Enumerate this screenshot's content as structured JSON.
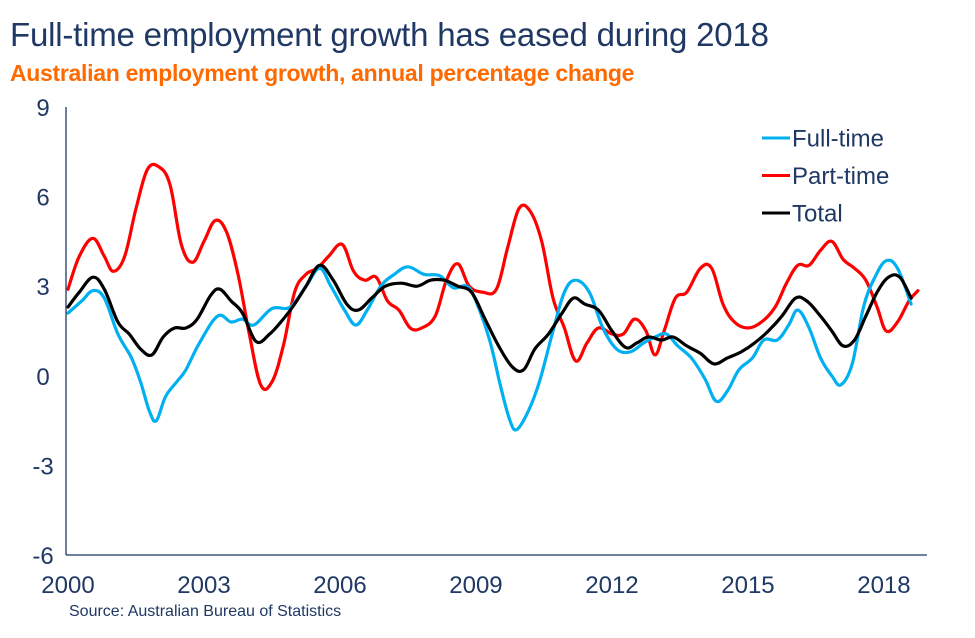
{
  "header": {
    "title": "Full-time employment growth has eased during 2018",
    "subtitle": "Australian employment growth, annual percentage change"
  },
  "footer": {
    "source": "Source: Australian Bureau of Statistics"
  },
  "chart_data": {
    "type": "line",
    "title": "Full-time employment growth has eased during 2018",
    "subtitle": "Australian employment growth, annual percentage change",
    "xlabel": "",
    "ylabel": "",
    "xlim": [
      2000,
      2019
    ],
    "ylim": [
      -6,
      9
    ],
    "x_ticks": [
      2000,
      2003,
      2006,
      2009,
      2012,
      2015,
      2018
    ],
    "x_tick_labels": [
      "2000",
      "2003",
      "2006",
      "2009",
      "2012",
      "2015",
      "2018"
    ],
    "y_ticks": [
      9,
      6,
      3,
      0,
      -3,
      -6
    ],
    "y_tick_labels": [
      "9",
      "6",
      "3",
      "0",
      "-3",
      "-6"
    ],
    "grid": false,
    "legend_position": "top-right",
    "series": [
      {
        "name": "Full-time",
        "color": "#00b0f0",
        "points": [
          [
            2000.0,
            2.1
          ],
          [
            2000.3,
            2.5
          ],
          [
            2000.55,
            2.85
          ],
          [
            2000.8,
            2.6
          ],
          [
            2001.1,
            1.4
          ],
          [
            2001.4,
            0.6
          ],
          [
            2001.6,
            -0.2
          ],
          [
            2001.8,
            -1.2
          ],
          [
            2001.95,
            -1.5
          ],
          [
            2002.15,
            -0.7
          ],
          [
            2002.4,
            -0.2
          ],
          [
            2002.6,
            0.2
          ],
          [
            2002.9,
            1.1
          ],
          [
            2003.3,
            2.0
          ],
          [
            2003.6,
            1.8
          ],
          [
            2003.85,
            1.9
          ],
          [
            2004.1,
            1.7
          ],
          [
            2004.5,
            2.25
          ],
          [
            2004.9,
            2.3
          ],
          [
            2005.25,
            3.0
          ],
          [
            2005.55,
            3.6
          ],
          [
            2005.8,
            3.0
          ],
          [
            2006.1,
            2.2
          ],
          [
            2006.35,
            1.7
          ],
          [
            2006.6,
            2.2
          ],
          [
            2006.9,
            3.0
          ],
          [
            2007.2,
            3.4
          ],
          [
            2007.5,
            3.65
          ],
          [
            2007.85,
            3.4
          ],
          [
            2008.2,
            3.35
          ],
          [
            2008.5,
            2.95
          ],
          [
            2008.8,
            3.0
          ],
          [
            2009.0,
            2.5
          ],
          [
            2009.3,
            1.2
          ],
          [
            2009.55,
            -0.4
          ],
          [
            2009.75,
            -1.5
          ],
          [
            2009.9,
            -1.8
          ],
          [
            2010.15,
            -1.2
          ],
          [
            2010.4,
            -0.2
          ],
          [
            2010.7,
            1.5
          ],
          [
            2010.95,
            2.8
          ],
          [
            2011.2,
            3.2
          ],
          [
            2011.5,
            2.8
          ],
          [
            2011.8,
            1.6
          ],
          [
            2012.1,
            0.9
          ],
          [
            2012.4,
            0.8
          ],
          [
            2012.7,
            1.1
          ],
          [
            2012.95,
            1.3
          ],
          [
            2013.2,
            1.4
          ],
          [
            2013.45,
            1.0
          ],
          [
            2013.75,
            0.6
          ],
          [
            2014.05,
            -0.1
          ],
          [
            2014.3,
            -0.85
          ],
          [
            2014.55,
            -0.5
          ],
          [
            2014.8,
            0.2
          ],
          [
            2015.1,
            0.6
          ],
          [
            2015.35,
            1.2
          ],
          [
            2015.65,
            1.2
          ],
          [
            2015.9,
            1.7
          ],
          [
            2016.1,
            2.2
          ],
          [
            2016.35,
            1.6
          ],
          [
            2016.6,
            0.6
          ],
          [
            2016.85,
            0.0
          ],
          [
            2017.05,
            -0.3
          ],
          [
            2017.3,
            0.4
          ],
          [
            2017.55,
            2.3
          ],
          [
            2017.8,
            3.3
          ],
          [
            2018.05,
            3.85
          ],
          [
            2018.3,
            3.6
          ],
          [
            2018.6,
            2.4
          ]
        ]
      },
      {
        "name": "Part-time",
        "color": "#ff0000",
        "points": [
          [
            2000.0,
            2.9
          ],
          [
            2000.25,
            4.0
          ],
          [
            2000.55,
            4.6
          ],
          [
            2000.8,
            4.0
          ],
          [
            2001.0,
            3.5
          ],
          [
            2001.25,
            4.0
          ],
          [
            2001.5,
            5.6
          ],
          [
            2001.75,
            6.9
          ],
          [
            2002.0,
            7.0
          ],
          [
            2002.25,
            6.4
          ],
          [
            2002.5,
            4.4
          ],
          [
            2002.75,
            3.8
          ],
          [
            2003.0,
            4.5
          ],
          [
            2003.25,
            5.2
          ],
          [
            2003.5,
            4.8
          ],
          [
            2003.75,
            3.4
          ],
          [
            2004.0,
            1.4
          ],
          [
            2004.25,
            -0.3
          ],
          [
            2004.5,
            -0.2
          ],
          [
            2004.75,
            1.0
          ],
          [
            2005.0,
            2.8
          ],
          [
            2005.25,
            3.4
          ],
          [
            2005.5,
            3.6
          ],
          [
            2005.75,
            4.0
          ],
          [
            2006.05,
            4.4
          ],
          [
            2006.3,
            3.5
          ],
          [
            2006.55,
            3.2
          ],
          [
            2006.8,
            3.3
          ],
          [
            2007.05,
            2.5
          ],
          [
            2007.3,
            2.2
          ],
          [
            2007.55,
            1.6
          ],
          [
            2007.8,
            1.6
          ],
          [
            2008.1,
            2.0
          ],
          [
            2008.35,
            3.2
          ],
          [
            2008.6,
            3.75
          ],
          [
            2008.85,
            3.0
          ],
          [
            2009.15,
            2.8
          ],
          [
            2009.45,
            2.9
          ],
          [
            2009.7,
            4.3
          ],
          [
            2009.95,
            5.6
          ],
          [
            2010.2,
            5.5
          ],
          [
            2010.45,
            4.5
          ],
          [
            2010.7,
            2.6
          ],
          [
            2010.95,
            1.6
          ],
          [
            2011.2,
            0.5
          ],
          [
            2011.45,
            1.1
          ],
          [
            2011.7,
            1.6
          ],
          [
            2012.0,
            1.4
          ],
          [
            2012.25,
            1.4
          ],
          [
            2012.5,
            1.9
          ],
          [
            2012.75,
            1.5
          ],
          [
            2012.95,
            0.7
          ],
          [
            2013.15,
            1.5
          ],
          [
            2013.4,
            2.6
          ],
          [
            2013.65,
            2.8
          ],
          [
            2013.95,
            3.6
          ],
          [
            2014.2,
            3.6
          ],
          [
            2014.45,
            2.4
          ],
          [
            2014.7,
            1.8
          ],
          [
            2015.0,
            1.6
          ],
          [
            2015.3,
            1.8
          ],
          [
            2015.6,
            2.3
          ],
          [
            2015.85,
            3.1
          ],
          [
            2016.1,
            3.7
          ],
          [
            2016.35,
            3.7
          ],
          [
            2016.6,
            4.2
          ],
          [
            2016.85,
            4.5
          ],
          [
            2017.1,
            3.9
          ],
          [
            2017.35,
            3.6
          ],
          [
            2017.6,
            3.2
          ],
          [
            2017.85,
            2.3
          ],
          [
            2018.05,
            1.5
          ],
          [
            2018.3,
            1.8
          ],
          [
            2018.55,
            2.5
          ],
          [
            2018.75,
            2.85
          ]
        ]
      },
      {
        "name": "Total",
        "color": "#000000",
        "points": [
          [
            2000.0,
            2.3
          ],
          [
            2000.25,
            2.8
          ],
          [
            2000.55,
            3.3
          ],
          [
            2000.8,
            2.9
          ],
          [
            2001.1,
            1.8
          ],
          [
            2001.35,
            1.4
          ],
          [
            2001.6,
            0.9
          ],
          [
            2001.85,
            0.7
          ],
          [
            2002.1,
            1.3
          ],
          [
            2002.35,
            1.6
          ],
          [
            2002.6,
            1.6
          ],
          [
            2002.85,
            1.9
          ],
          [
            2003.15,
            2.7
          ],
          [
            2003.35,
            2.9
          ],
          [
            2003.6,
            2.5
          ],
          [
            2003.85,
            2.1
          ],
          [
            2004.15,
            1.15
          ],
          [
            2004.45,
            1.4
          ],
          [
            2004.75,
            1.9
          ],
          [
            2005.0,
            2.4
          ],
          [
            2005.25,
            3.0
          ],
          [
            2005.55,
            3.7
          ],
          [
            2005.85,
            3.2
          ],
          [
            2006.15,
            2.4
          ],
          [
            2006.4,
            2.2
          ],
          [
            2006.7,
            2.6
          ],
          [
            2007.0,
            3.0
          ],
          [
            2007.35,
            3.1
          ],
          [
            2007.7,
            3.0
          ],
          [
            2008.0,
            3.2
          ],
          [
            2008.3,
            3.2
          ],
          [
            2008.6,
            3.0
          ],
          [
            2008.9,
            2.8
          ],
          [
            2009.2,
            1.9
          ],
          [
            2009.5,
            1.0
          ],
          [
            2009.8,
            0.3
          ],
          [
            2010.05,
            0.2
          ],
          [
            2010.3,
            0.9
          ],
          [
            2010.6,
            1.4
          ],
          [
            2010.9,
            2.1
          ],
          [
            2011.15,
            2.6
          ],
          [
            2011.4,
            2.4
          ],
          [
            2011.7,
            2.2
          ],
          [
            2012.0,
            1.5
          ],
          [
            2012.3,
            0.95
          ],
          [
            2012.55,
            1.1
          ],
          [
            2012.8,
            1.3
          ],
          [
            2013.1,
            1.2
          ],
          [
            2013.35,
            1.3
          ],
          [
            2013.65,
            1.0
          ],
          [
            2013.95,
            0.75
          ],
          [
            2014.25,
            0.4
          ],
          [
            2014.55,
            0.6
          ],
          [
            2014.85,
            0.8
          ],
          [
            2015.15,
            1.1
          ],
          [
            2015.45,
            1.5
          ],
          [
            2015.75,
            2.0
          ],
          [
            2016.05,
            2.6
          ],
          [
            2016.3,
            2.5
          ],
          [
            2016.6,
            2.0
          ],
          [
            2016.85,
            1.5
          ],
          [
            2017.1,
            1.0
          ],
          [
            2017.35,
            1.2
          ],
          [
            2017.6,
            2.0
          ],
          [
            2017.85,
            2.8
          ],
          [
            2018.1,
            3.3
          ],
          [
            2018.35,
            3.3
          ],
          [
            2018.6,
            2.6
          ]
        ]
      }
    ]
  }
}
